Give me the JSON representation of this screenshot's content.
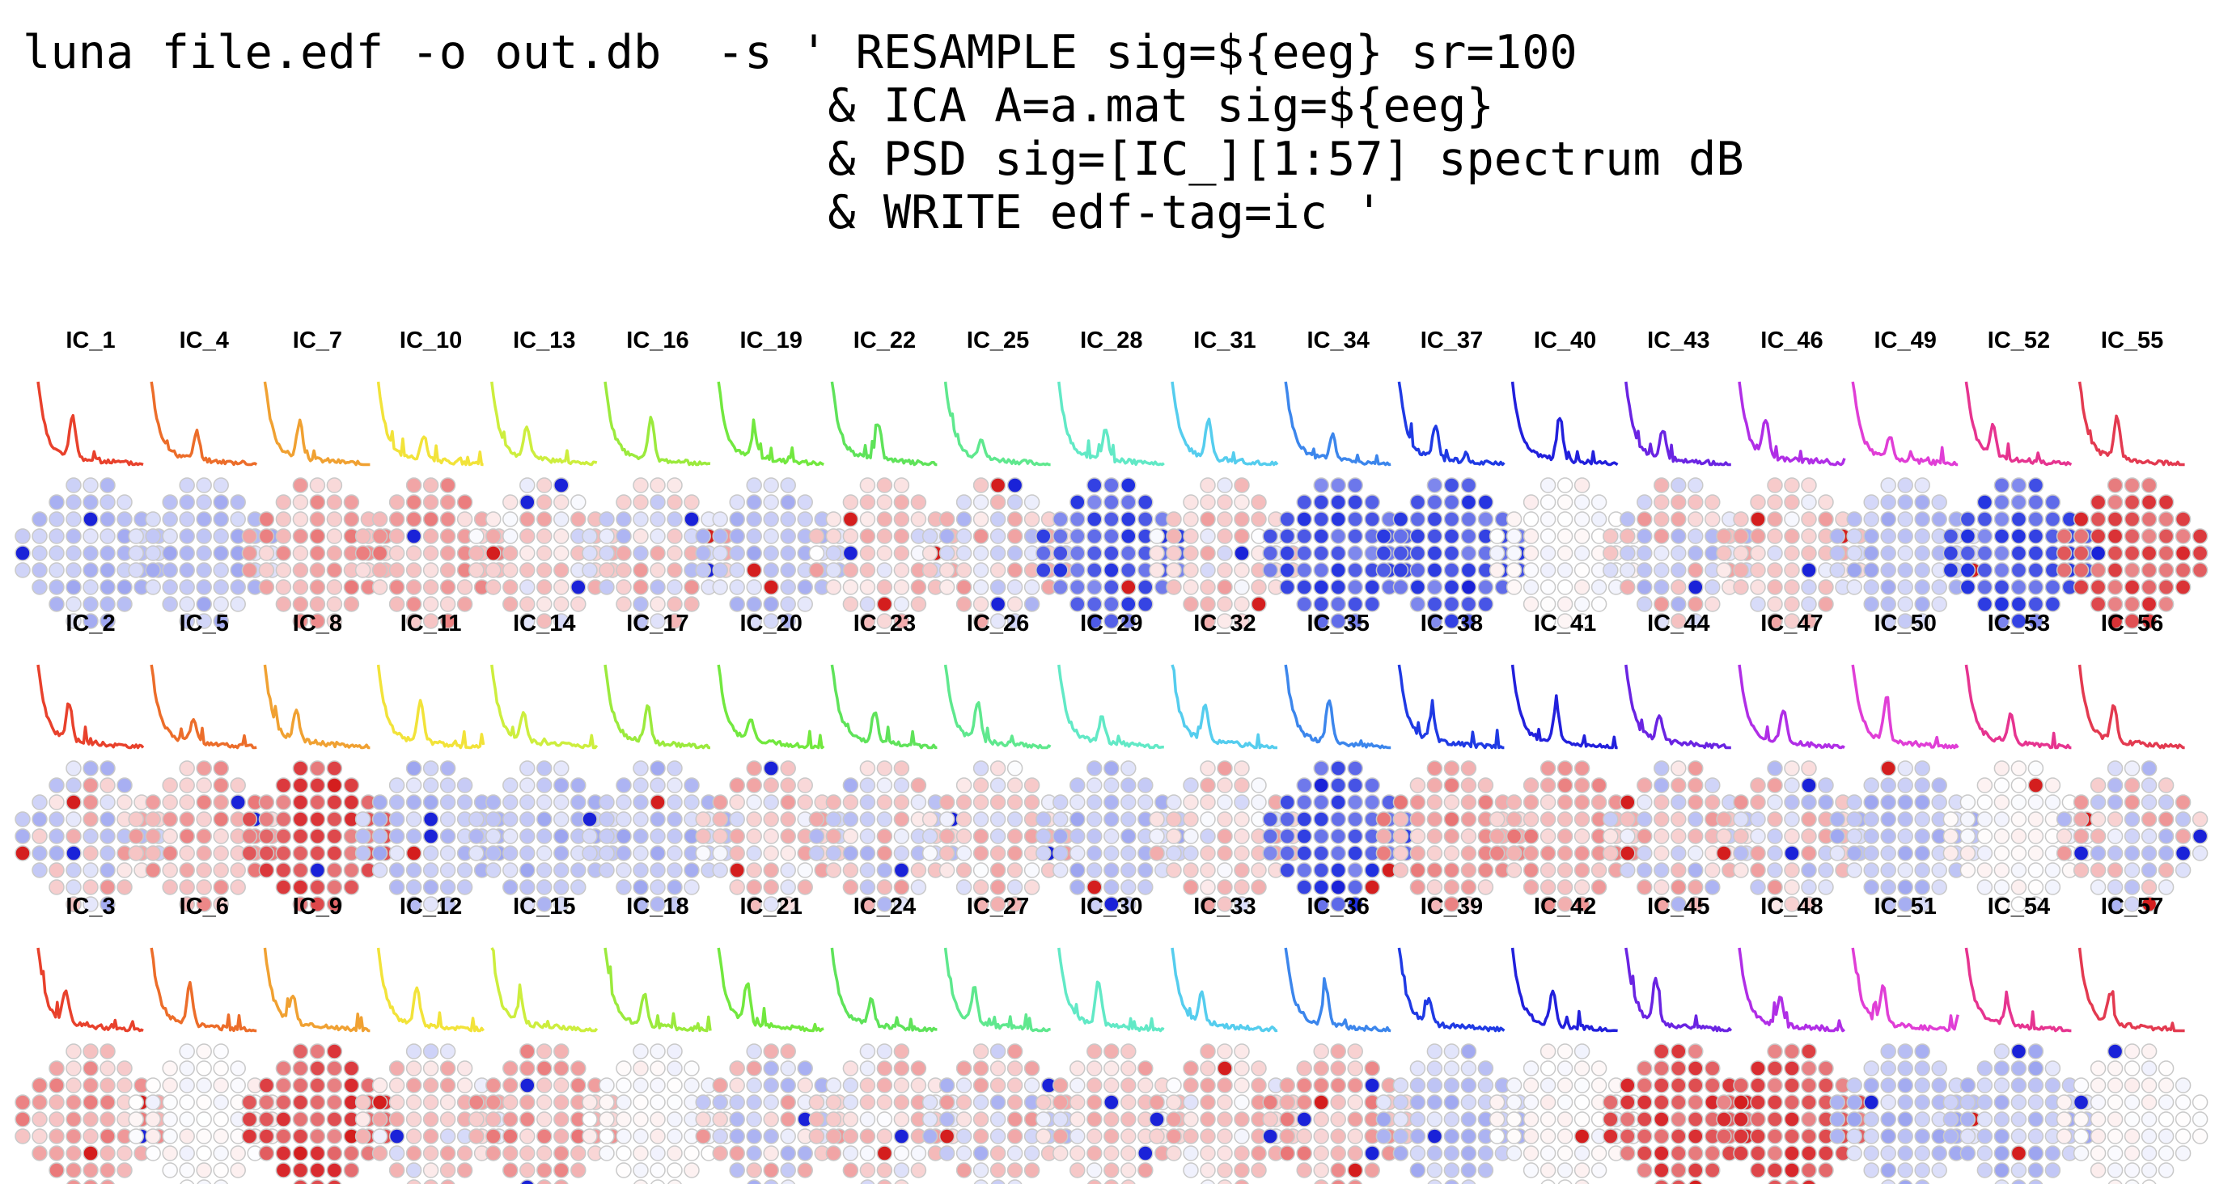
{
  "command": {
    "lines": [
      "luna file.edf -o out.db  -s ' RESAMPLE sig=${eeg} sr=100",
      "                             & ICA A=a.mat sig=${eeg}",
      "                             & PSD sig=[IC_][1:57] spectrum dB",
      "                             & WRITE edf-tag=ic '"
    ]
  },
  "components": {
    "rows": [
      [
        "IC_1",
        "IC_4",
        "IC_7",
        "IC_10",
        "IC_13",
        "IC_16",
        "IC_19",
        "IC_22",
        "IC_25",
        "IC_28",
        "IC_31",
        "IC_34",
        "IC_37",
        "IC_40",
        "IC_43",
        "IC_46",
        "IC_49",
        "IC_52",
        "IC_55"
      ],
      [
        "IC_2",
        "IC_5",
        "IC_8",
        "IC_11",
        "IC_14",
        "IC_17",
        "IC_20",
        "IC_23",
        "IC_26",
        "IC_29",
        "IC_32",
        "IC_35",
        "IC_38",
        "IC_41",
        "IC_44",
        "IC_47",
        "IC_50",
        "IC_53",
        "IC_56"
      ],
      [
        "IC_3",
        "IC_6",
        "IC_9",
        "IC_12",
        "IC_15",
        "IC_18",
        "IC_21",
        "IC_24",
        "IC_27",
        "IC_30",
        "IC_33",
        "IC_36",
        "IC_39",
        "IC_42",
        "IC_45",
        "IC_48",
        "IC_51",
        "IC_54",
        "IC_57"
      ]
    ],
    "column_colors": [
      "#e8412c",
      "#ec6d2a",
      "#f0a132",
      "#f2e33a",
      "#cdee3e",
      "#9bea3d",
      "#72e83f",
      "#5fe35a",
      "#5fe88e",
      "#62e9c6",
      "#55cdee",
      "#3c86ec",
      "#1f3ae4",
      "#2220dc",
      "#6a24e2",
      "#b02ee6",
      "#e03ed6",
      "#e63490",
      "#e33a50"
    ],
    "topo_patterns": {
      "IC_1": "mostly-blue",
      "IC_4": "mostly-blue",
      "IC_7": "mostly-red",
      "IC_10": "mostly-red",
      "IC_13": "mixed-red",
      "IC_16": "mixed",
      "IC_19": "mostly-blue",
      "IC_22": "mixed-red",
      "IC_25": "mixed",
      "IC_28": "strong-blue",
      "IC_31": "mixed-red",
      "IC_34": "strong-blue",
      "IC_37": "strong-blue",
      "IC_40": "faint",
      "IC_43": "mixed",
      "IC_46": "mixed-red",
      "IC_49": "mostly-blue",
      "IC_52": "strong-blue",
      "IC_55": "strong-red",
      "IC_2": "mixed",
      "IC_5": "mostly-red",
      "IC_8": "strong-red",
      "IC_11": "mostly-blue",
      "IC_14": "mostly-blue",
      "IC_17": "mostly-blue",
      "IC_20": "mixed-red",
      "IC_23": "mixed",
      "IC_26": "mixed-red",
      "IC_29": "mostly-blue",
      "IC_32": "mixed-red",
      "IC_35": "strong-blue",
      "IC_38": "mostly-red",
      "IC_41": "mostly-red",
      "IC_44": "mixed",
      "IC_47": "mixed",
      "IC_50": "mostly-blue",
      "IC_53": "faint",
      "IC_56": "mixed",
      "IC_3": "mostly-red",
      "IC_6": "faint",
      "IC_9": "strong-red",
      "IC_12": "mixed-red",
      "IC_15": "mostly-red",
      "IC_18": "faint",
      "IC_21": "mixed",
      "IC_24": "mixed-red",
      "IC_27": "mixed",
      "IC_30": "mixed-red",
      "IC_33": "mixed-red",
      "IC_36": "mostly-red",
      "IC_39": "mostly-blue",
      "IC_42": "faint",
      "IC_45": "strong-red",
      "IC_48": "strong-red",
      "IC_51": "mostly-blue",
      "IC_54": "mostly-blue",
      "IC_57": "faint"
    }
  }
}
